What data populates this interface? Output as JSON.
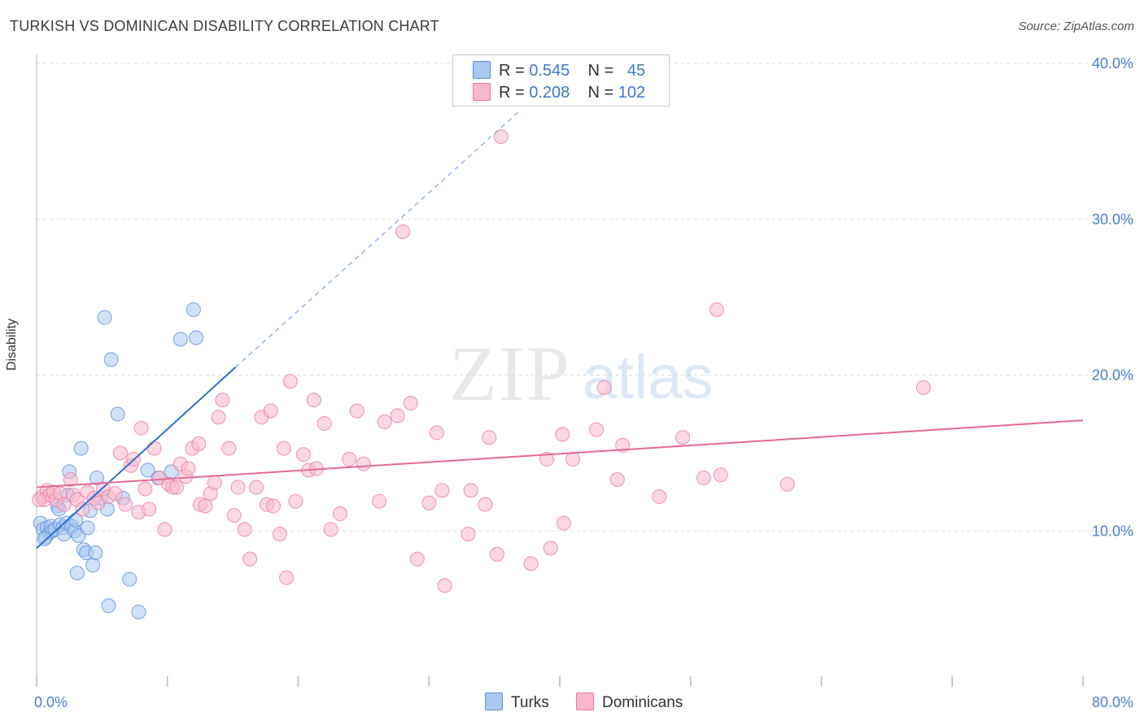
{
  "title": "TURKISH VS DOMINICAN DISABILITY CORRELATION CHART",
  "source": "Source: ZipAtlas.com",
  "watermark": {
    "zip": "ZIP",
    "atlas": "atlas"
  },
  "legend": {
    "rows": [
      {
        "r_label": "R =",
        "r_value": "0.545",
        "n_label": "N =",
        "n_value": "45",
        "color": "#a9c8f2"
      },
      {
        "r_label": "R =",
        "r_value": "0.208",
        "n_label": "N =",
        "n_value": "102",
        "color": "#f7b8cc"
      }
    ]
  },
  "bottom_legend": [
    {
      "label": "Turks",
      "color": "#a9c8f2"
    },
    {
      "label": "Dominicans",
      "color": "#f7b8cc"
    }
  ],
  "chart_data": {
    "type": "scatter",
    "title": "TURKISH VS DOMINICAN DISABILITY CORRELATION CHART",
    "xlabel": "",
    "ylabel": "Disability",
    "xlim": [
      0,
      80
    ],
    "ylim": [
      0,
      40.0
    ],
    "x_tick_labels": [
      "0.0%",
      "80.0%"
    ],
    "y_ticks": [
      10,
      20,
      30,
      40
    ],
    "y_tick_labels": [
      "10.0%",
      "20.0%",
      "30.0%",
      "40.0%"
    ],
    "grid": true,
    "legend_position": "top-center",
    "series": [
      {
        "name": "Turks",
        "color": "#a9c8f2",
        "stroke": "#5b8fd6",
        "points": [
          [
            0.3,
            10.5
          ],
          [
            0.5,
            10.1
          ],
          [
            0.7,
            9.6
          ],
          [
            0.8,
            10.2
          ],
          [
            1.0,
            9.9
          ],
          [
            1.1,
            10.3
          ],
          [
            1.2,
            10.0
          ],
          [
            1.4,
            10.1
          ],
          [
            1.6,
            11.6
          ],
          [
            1.7,
            11.4
          ],
          [
            1.8,
            10.4
          ],
          [
            2.0,
            10.2
          ],
          [
            2.1,
            9.8
          ],
          [
            2.3,
            10.5
          ],
          [
            2.4,
            12.3
          ],
          [
            2.5,
            13.8
          ],
          [
            2.7,
            10.3
          ],
          [
            2.9,
            10.0
          ],
          [
            3.0,
            10.7
          ],
          [
            3.1,
            7.3
          ],
          [
            3.2,
            9.7
          ],
          [
            3.4,
            15.3
          ],
          [
            3.6,
            8.8
          ],
          [
            3.8,
            8.6
          ],
          [
            3.9,
            10.2
          ],
          [
            4.1,
            11.3
          ],
          [
            4.3,
            7.8
          ],
          [
            4.5,
            8.6
          ],
          [
            4.6,
            13.4
          ],
          [
            4.9,
            12.1
          ],
          [
            5.2,
            23.7
          ],
          [
            5.4,
            11.4
          ],
          [
            5.5,
            5.2
          ],
          [
            5.7,
            21.0
          ],
          [
            6.2,
            17.5
          ],
          [
            6.6,
            12.1
          ],
          [
            7.1,
            6.9
          ],
          [
            7.8,
            4.8
          ],
          [
            8.5,
            13.9
          ],
          [
            9.3,
            13.4
          ],
          [
            10.3,
            13.8
          ],
          [
            11.0,
            22.3
          ],
          [
            12.0,
            24.2
          ],
          [
            12.2,
            22.4
          ],
          [
            0.6,
            9.5
          ]
        ],
        "trend": {
          "x0": 0,
          "y0": 8.9,
          "x1": 15.2,
          "y1": 20.5,
          "x_dash_end": 37.0,
          "y_dash_end": 37.0
        }
      },
      {
        "name": "Dominicans",
        "color": "#f7b8cc",
        "stroke": "#e87aa0",
        "points": [
          [
            0.4,
            12.2
          ],
          [
            0.6,
            12.0
          ],
          [
            0.8,
            12.6
          ],
          [
            1.0,
            12.3
          ],
          [
            1.3,
            12.5
          ],
          [
            1.5,
            12.0
          ],
          [
            1.8,
            12.4
          ],
          [
            2.1,
            11.7
          ],
          [
            2.6,
            13.3
          ],
          [
            2.8,
            12.3
          ],
          [
            3.1,
            12.0
          ],
          [
            3.5,
            11.4
          ],
          [
            3.9,
            12.5
          ],
          [
            4.4,
            12.1
          ],
          [
            4.7,
            11.8
          ],
          [
            5.1,
            12.7
          ],
          [
            5.5,
            12.2
          ],
          [
            6.0,
            12.4
          ],
          [
            6.4,
            15.0
          ],
          [
            6.8,
            11.7
          ],
          [
            7.2,
            14.2
          ],
          [
            7.4,
            14.6
          ],
          [
            7.8,
            11.2
          ],
          [
            8.0,
            16.6
          ],
          [
            8.3,
            12.7
          ],
          [
            8.6,
            11.4
          ],
          [
            9.0,
            15.3
          ],
          [
            9.4,
            13.4
          ],
          [
            9.8,
            10.1
          ],
          [
            10.1,
            13.0
          ],
          [
            10.4,
            12.8
          ],
          [
            10.7,
            12.8
          ],
          [
            11.0,
            14.3
          ],
          [
            11.4,
            13.5
          ],
          [
            11.6,
            14.0
          ],
          [
            11.9,
            15.3
          ],
          [
            12.4,
            15.6
          ],
          [
            12.5,
            11.7
          ],
          [
            12.9,
            11.6
          ],
          [
            13.3,
            12.4
          ],
          [
            13.6,
            13.1
          ],
          [
            13.9,
            17.3
          ],
          [
            14.2,
            18.4
          ],
          [
            14.7,
            15.3
          ],
          [
            15.1,
            11.0
          ],
          [
            15.4,
            12.8
          ],
          [
            15.9,
            10.1
          ],
          [
            16.3,
            8.2
          ],
          [
            16.8,
            12.8
          ],
          [
            17.2,
            17.3
          ],
          [
            17.6,
            11.7
          ],
          [
            17.9,
            17.7
          ],
          [
            18.1,
            11.6
          ],
          [
            18.6,
            9.8
          ],
          [
            18.9,
            15.3
          ],
          [
            19.1,
            7.0
          ],
          [
            19.4,
            19.6
          ],
          [
            19.8,
            11.9
          ],
          [
            20.4,
            14.9
          ],
          [
            20.8,
            13.9
          ],
          [
            21.2,
            18.4
          ],
          [
            21.4,
            14.0
          ],
          [
            22.0,
            16.9
          ],
          [
            22.5,
            10.1
          ],
          [
            23.2,
            11.1
          ],
          [
            23.9,
            14.6
          ],
          [
            24.5,
            17.7
          ],
          [
            25.0,
            14.3
          ],
          [
            26.2,
            11.9
          ],
          [
            26.6,
            17.0
          ],
          [
            27.6,
            17.4
          ],
          [
            28.0,
            29.2
          ],
          [
            28.6,
            18.2
          ],
          [
            29.1,
            8.2
          ],
          [
            30.0,
            11.8
          ],
          [
            30.6,
            16.3
          ],
          [
            31.0,
            12.6
          ],
          [
            31.2,
            6.5
          ],
          [
            33.0,
            9.8
          ],
          [
            33.2,
            12.6
          ],
          [
            34.3,
            11.7
          ],
          [
            34.6,
            16.0
          ],
          [
            35.2,
            8.5
          ],
          [
            35.5,
            35.3
          ],
          [
            37.8,
            7.9
          ],
          [
            39.0,
            14.6
          ],
          [
            39.3,
            8.9
          ],
          [
            40.2,
            16.2
          ],
          [
            40.3,
            10.5
          ],
          [
            41.0,
            14.6
          ],
          [
            42.8,
            16.5
          ],
          [
            43.4,
            19.2
          ],
          [
            44.4,
            13.3
          ],
          [
            44.8,
            15.5
          ],
          [
            47.6,
            12.2
          ],
          [
            49.4,
            16.0
          ],
          [
            51.0,
            13.4
          ],
          [
            52.0,
            24.2
          ],
          [
            52.3,
            13.6
          ],
          [
            57.4,
            13.0
          ],
          [
            67.8,
            19.2
          ],
          [
            0.2,
            12.0
          ]
        ],
        "trend": {
          "x0": 0,
          "y0": 12.8,
          "x1": 80,
          "y1": 17.1
        }
      }
    ]
  }
}
